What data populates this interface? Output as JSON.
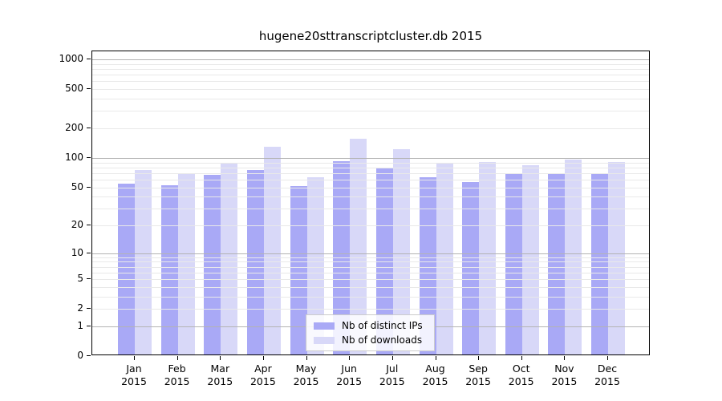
{
  "chart_data": {
    "type": "bar",
    "title": "hugene20sttranscriptcluster.db 2015",
    "categories": [
      {
        "month": "Jan",
        "year": "2015"
      },
      {
        "month": "Feb",
        "year": "2015"
      },
      {
        "month": "Mar",
        "year": "2015"
      },
      {
        "month": "Apr",
        "year": "2015"
      },
      {
        "month": "May",
        "year": "2015"
      },
      {
        "month": "Jun",
        "year": "2015"
      },
      {
        "month": "Jul",
        "year": "2015"
      },
      {
        "month": "Aug",
        "year": "2015"
      },
      {
        "month": "Sep",
        "year": "2015"
      },
      {
        "month": "Oct",
        "year": "2015"
      },
      {
        "month": "Nov",
        "year": "2015"
      },
      {
        "month": "Dec",
        "year": "2015"
      }
    ],
    "series": [
      {
        "name": "Nb of distinct IPs",
        "color": "#a9a9f6",
        "values": [
          52,
          51,
          65,
          73,
          50,
          90,
          77,
          61,
          54,
          66,
          66,
          67
        ]
      },
      {
        "name": "Nb of downloads",
        "color": "#d8d8f8",
        "values": [
          73,
          66,
          85,
          125,
          61,
          150,
          119,
          85,
          88,
          81,
          93,
          88
        ]
      }
    ],
    "y_scale": "log1p",
    "y_ticks": [
      0,
      1,
      2,
      5,
      10,
      20,
      50,
      100,
      200,
      500,
      1000
    ],
    "ylim": [
      0,
      1208
    ],
    "grid": true,
    "legend_position": "inside-bottom-center",
    "colors": {
      "major_grid": "#b3b3b3",
      "minor_grid": "#e9e9e9",
      "axis": "#000000",
      "background": "#ffffff"
    }
  }
}
